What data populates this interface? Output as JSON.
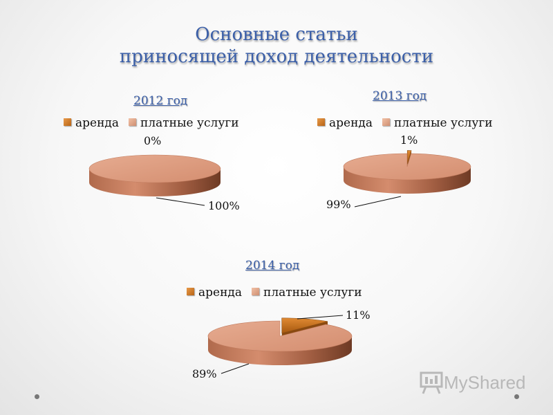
{
  "title": {
    "line1": "Основные статьи",
    "line2": "приносящей доход деятельности"
  },
  "legend": {
    "rent": "аренда",
    "paid": "платные услуги"
  },
  "colors": {
    "rent": "#c8741f",
    "paid": "#dc9a7d",
    "title": "#3b5fa8"
  },
  "chart_data": [
    {
      "type": "pie",
      "title": "2012 год",
      "categories": [
        "аренда",
        "платные услуги"
      ],
      "values": [
        0,
        100
      ],
      "labels": [
        "0%",
        "100%"
      ],
      "legend": "top"
    },
    {
      "type": "pie",
      "title": "2013 год",
      "categories": [
        "аренда",
        "платные услуги"
      ],
      "values": [
        1,
        99
      ],
      "labels": [
        "1%",
        "99%"
      ],
      "legend": "top"
    },
    {
      "type": "pie",
      "title": "2014 год",
      "categories": [
        "аренда",
        "платные услуги"
      ],
      "values": [
        11,
        89
      ],
      "labels": [
        "11%",
        "89%"
      ],
      "legend": "top"
    }
  ],
  "logo": {
    "text": "MyShared",
    "icon": "presentation-board-icon"
  }
}
